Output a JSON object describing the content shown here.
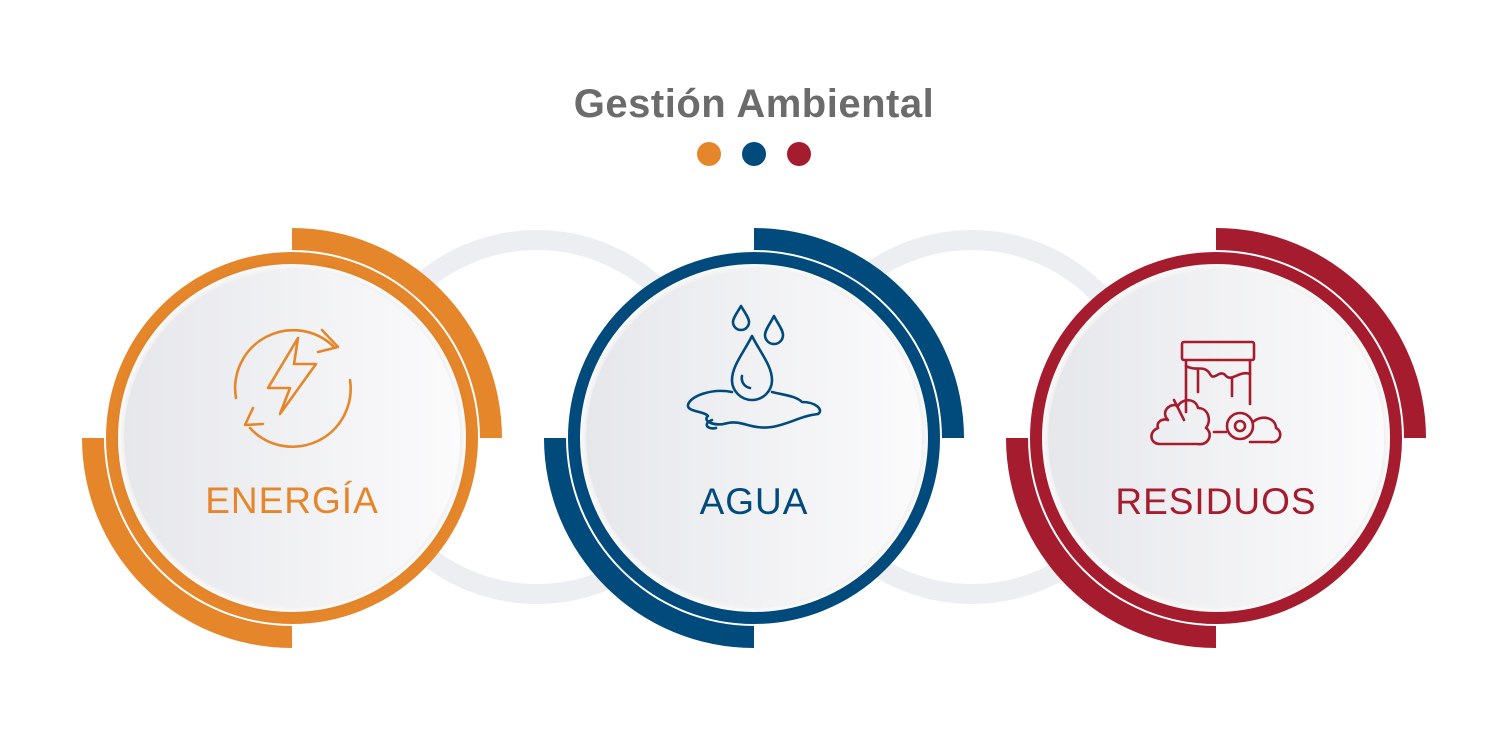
{
  "title": "Gestión Ambiental",
  "colors": {
    "energia": "#e5862a",
    "agua": "#004a7c",
    "residuos": "#a61c2f",
    "title": "#6b6b6b",
    "connector": "#eceef2"
  },
  "dots": [
    {
      "color": "#e5862a"
    },
    {
      "color": "#004a7c"
    },
    {
      "color": "#a61c2f"
    }
  ],
  "items": [
    {
      "label": "ENERGÍA",
      "icon": "energy-cycle-icon",
      "color": "#e5862a"
    },
    {
      "label": "AGUA",
      "icon": "water-drops-icon",
      "color": "#004a7c"
    },
    {
      "label": "RESIDUOS",
      "icon": "waste-bin-icon",
      "color": "#a61c2f"
    }
  ]
}
